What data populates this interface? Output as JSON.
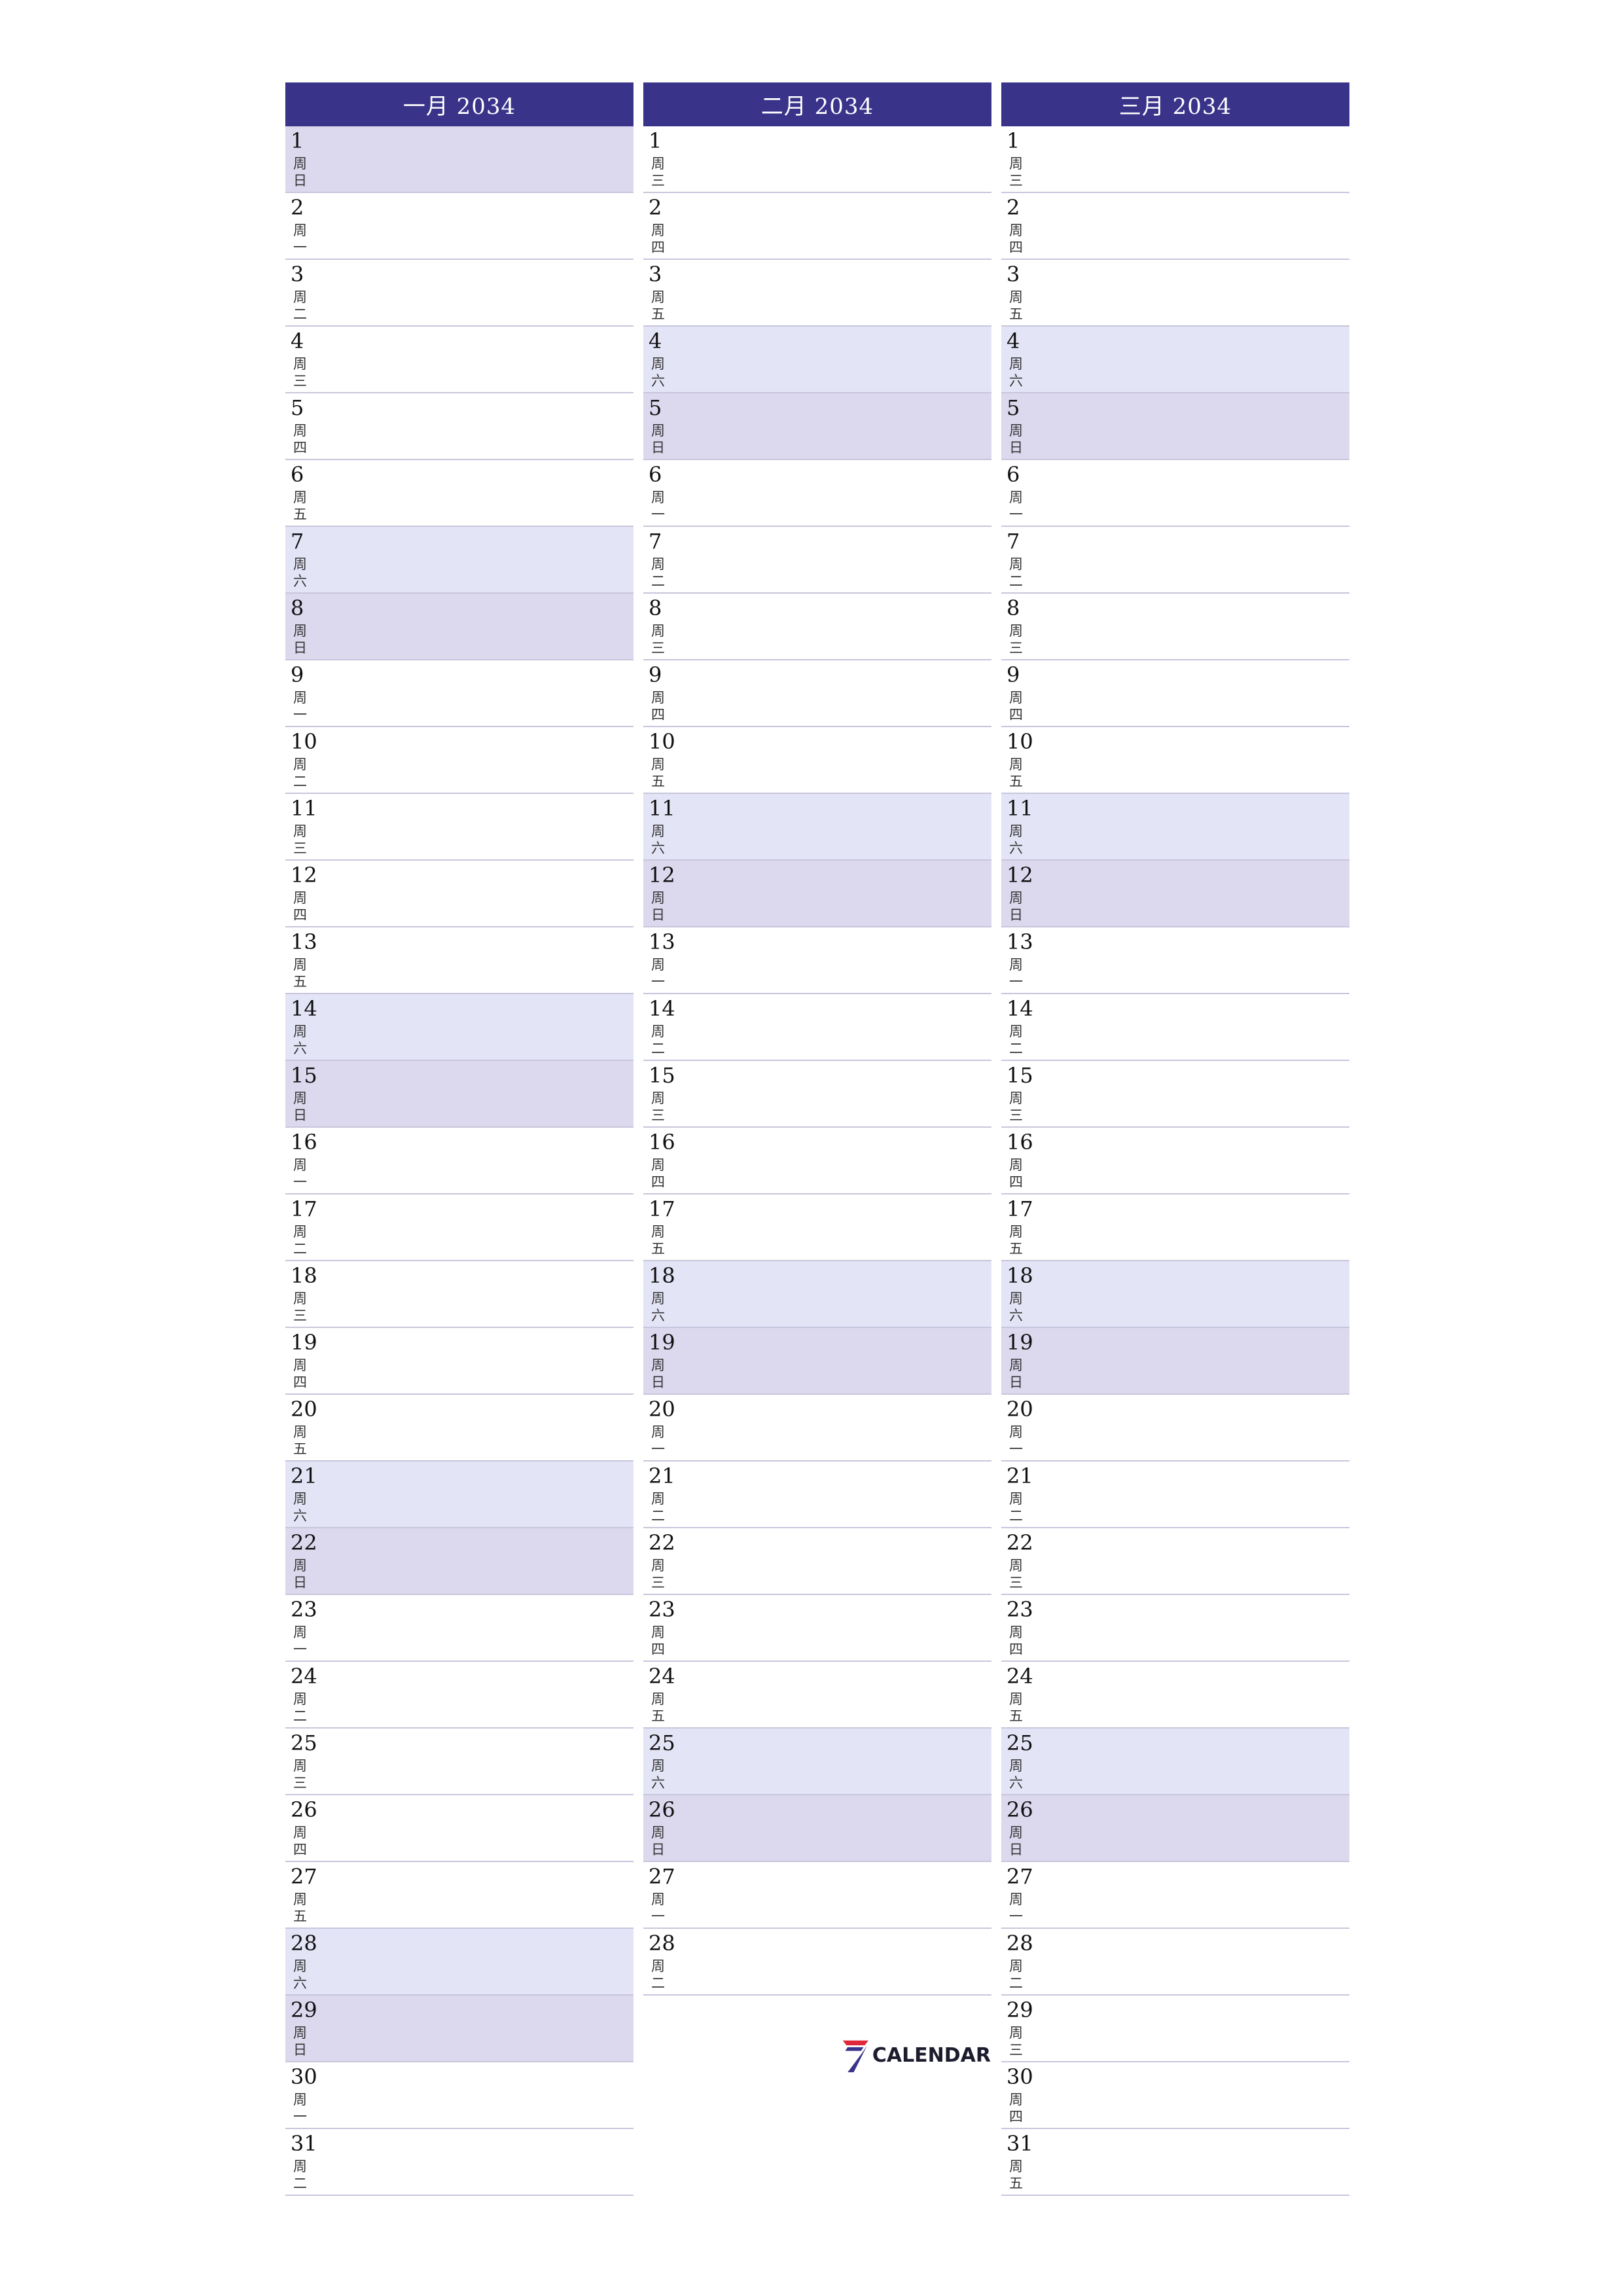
{
  "months": [
    {
      "title": "一月 2034",
      "days": [
        {
          "d": "1",
          "w": "周日",
          "t": "sun"
        },
        {
          "d": "2",
          "w": "周一",
          "t": ""
        },
        {
          "d": "3",
          "w": "周二",
          "t": ""
        },
        {
          "d": "4",
          "w": "周三",
          "t": ""
        },
        {
          "d": "5",
          "w": "周四",
          "t": ""
        },
        {
          "d": "6",
          "w": "周五",
          "t": ""
        },
        {
          "d": "7",
          "w": "周六",
          "t": "sat"
        },
        {
          "d": "8",
          "w": "周日",
          "t": "sun"
        },
        {
          "d": "9",
          "w": "周一",
          "t": ""
        },
        {
          "d": "10",
          "w": "周二",
          "t": ""
        },
        {
          "d": "11",
          "w": "周三",
          "t": ""
        },
        {
          "d": "12",
          "w": "周四",
          "t": ""
        },
        {
          "d": "13",
          "w": "周五",
          "t": ""
        },
        {
          "d": "14",
          "w": "周六",
          "t": "sat"
        },
        {
          "d": "15",
          "w": "周日",
          "t": "sun"
        },
        {
          "d": "16",
          "w": "周一",
          "t": ""
        },
        {
          "d": "17",
          "w": "周二",
          "t": ""
        },
        {
          "d": "18",
          "w": "周三",
          "t": ""
        },
        {
          "d": "19",
          "w": "周四",
          "t": ""
        },
        {
          "d": "20",
          "w": "周五",
          "t": ""
        },
        {
          "d": "21",
          "w": "周六",
          "t": "sat"
        },
        {
          "d": "22",
          "w": "周日",
          "t": "sun"
        },
        {
          "d": "23",
          "w": "周一",
          "t": ""
        },
        {
          "d": "24",
          "w": "周二",
          "t": ""
        },
        {
          "d": "25",
          "w": "周三",
          "t": ""
        },
        {
          "d": "26",
          "w": "周四",
          "t": ""
        },
        {
          "d": "27",
          "w": "周五",
          "t": ""
        },
        {
          "d": "28",
          "w": "周六",
          "t": "sat"
        },
        {
          "d": "29",
          "w": "周日",
          "t": "sun"
        },
        {
          "d": "30",
          "w": "周一",
          "t": ""
        },
        {
          "d": "31",
          "w": "周二",
          "t": ""
        }
      ]
    },
    {
      "title": "二月 2034",
      "days": [
        {
          "d": "1",
          "w": "周三",
          "t": ""
        },
        {
          "d": "2",
          "w": "周四",
          "t": ""
        },
        {
          "d": "3",
          "w": "周五",
          "t": ""
        },
        {
          "d": "4",
          "w": "周六",
          "t": "sat"
        },
        {
          "d": "5",
          "w": "周日",
          "t": "sun"
        },
        {
          "d": "6",
          "w": "周一",
          "t": ""
        },
        {
          "d": "7",
          "w": "周二",
          "t": ""
        },
        {
          "d": "8",
          "w": "周三",
          "t": ""
        },
        {
          "d": "9",
          "w": "周四",
          "t": ""
        },
        {
          "d": "10",
          "w": "周五",
          "t": ""
        },
        {
          "d": "11",
          "w": "周六",
          "t": "sat"
        },
        {
          "d": "12",
          "w": "周日",
          "t": "sun"
        },
        {
          "d": "13",
          "w": "周一",
          "t": ""
        },
        {
          "d": "14",
          "w": "周二",
          "t": ""
        },
        {
          "d": "15",
          "w": "周三",
          "t": ""
        },
        {
          "d": "16",
          "w": "周四",
          "t": ""
        },
        {
          "d": "17",
          "w": "周五",
          "t": ""
        },
        {
          "d": "18",
          "w": "周六",
          "t": "sat"
        },
        {
          "d": "19",
          "w": "周日",
          "t": "sun"
        },
        {
          "d": "20",
          "w": "周一",
          "t": ""
        },
        {
          "d": "21",
          "w": "周二",
          "t": ""
        },
        {
          "d": "22",
          "w": "周三",
          "t": ""
        },
        {
          "d": "23",
          "w": "周四",
          "t": ""
        },
        {
          "d": "24",
          "w": "周五",
          "t": ""
        },
        {
          "d": "25",
          "w": "周六",
          "t": "sat"
        },
        {
          "d": "26",
          "w": "周日",
          "t": "sun"
        },
        {
          "d": "27",
          "w": "周一",
          "t": ""
        },
        {
          "d": "28",
          "w": "周二",
          "t": ""
        }
      ]
    },
    {
      "title": "三月 2034",
      "days": [
        {
          "d": "1",
          "w": "周三",
          "t": ""
        },
        {
          "d": "2",
          "w": "周四",
          "t": ""
        },
        {
          "d": "3",
          "w": "周五",
          "t": ""
        },
        {
          "d": "4",
          "w": "周六",
          "t": "sat"
        },
        {
          "d": "5",
          "w": "周日",
          "t": "sun"
        },
        {
          "d": "6",
          "w": "周一",
          "t": ""
        },
        {
          "d": "7",
          "w": "周二",
          "t": ""
        },
        {
          "d": "8",
          "w": "周三",
          "t": ""
        },
        {
          "d": "9",
          "w": "周四",
          "t": ""
        },
        {
          "d": "10",
          "w": "周五",
          "t": ""
        },
        {
          "d": "11",
          "w": "周六",
          "t": "sat"
        },
        {
          "d": "12",
          "w": "周日",
          "t": "sun"
        },
        {
          "d": "13",
          "w": "周一",
          "t": ""
        },
        {
          "d": "14",
          "w": "周二",
          "t": ""
        },
        {
          "d": "15",
          "w": "周三",
          "t": ""
        },
        {
          "d": "16",
          "w": "周四",
          "t": ""
        },
        {
          "d": "17",
          "w": "周五",
          "t": ""
        },
        {
          "d": "18",
          "w": "周六",
          "t": "sat"
        },
        {
          "d": "19",
          "w": "周日",
          "t": "sun"
        },
        {
          "d": "20",
          "w": "周一",
          "t": ""
        },
        {
          "d": "21",
          "w": "周二",
          "t": ""
        },
        {
          "d": "22",
          "w": "周三",
          "t": ""
        },
        {
          "d": "23",
          "w": "周四",
          "t": ""
        },
        {
          "d": "24",
          "w": "周五",
          "t": ""
        },
        {
          "d": "25",
          "w": "周六",
          "t": "sat"
        },
        {
          "d": "26",
          "w": "周日",
          "t": "sun"
        },
        {
          "d": "27",
          "w": "周一",
          "t": ""
        },
        {
          "d": "28",
          "w": "周二",
          "t": ""
        },
        {
          "d": "29",
          "w": "周三",
          "t": ""
        },
        {
          "d": "30",
          "w": "周四",
          "t": ""
        },
        {
          "d": "31",
          "w": "周五",
          "t": ""
        }
      ]
    }
  ],
  "logo": {
    "icon": "seven-logo-icon",
    "text": "CALENDAR"
  },
  "colors": {
    "header": "#39338a",
    "saturday": "#e4e4f7",
    "sunday": "#dcd8ee",
    "logo_red": "#e0283c",
    "logo_blue": "#39338a"
  }
}
